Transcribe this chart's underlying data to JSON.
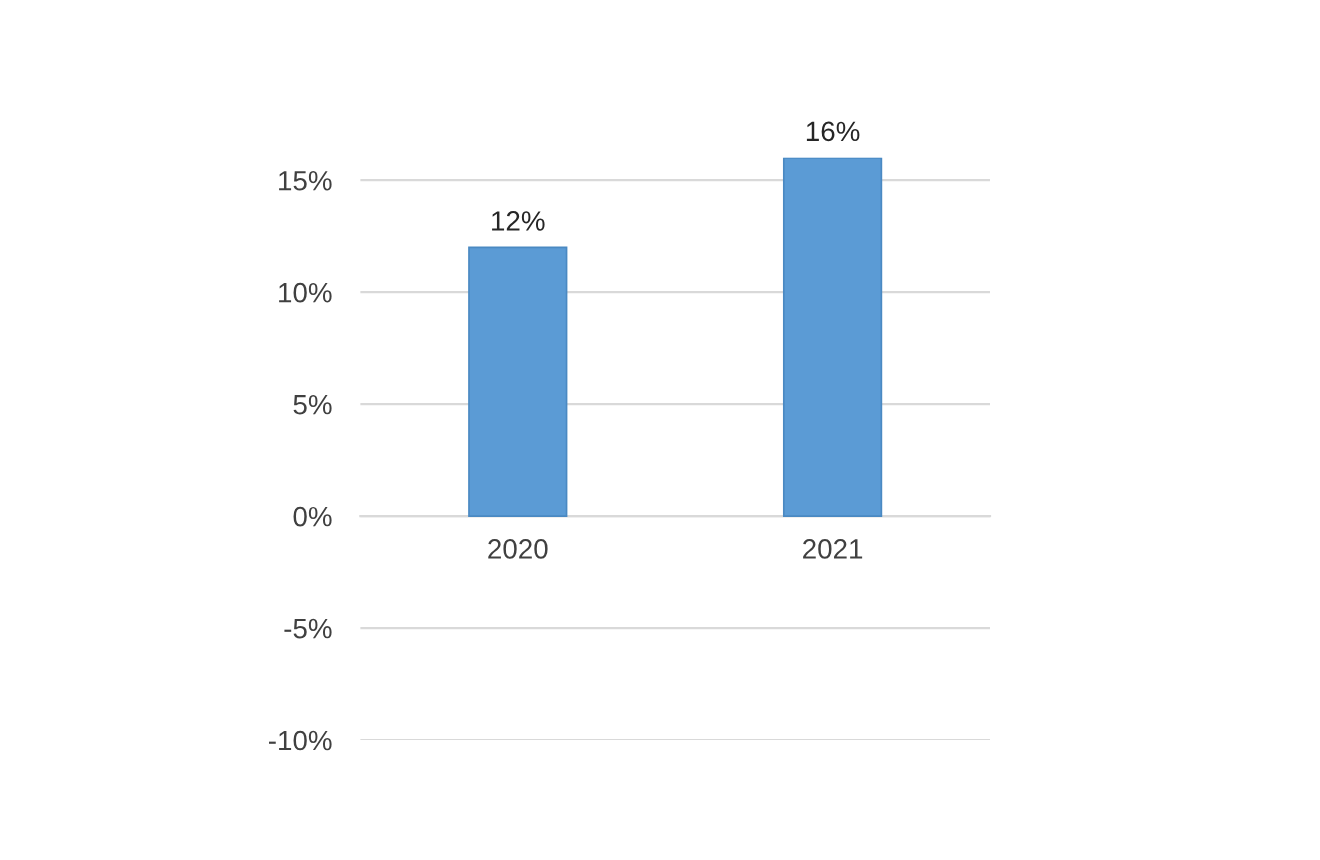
{
  "chart_data": {
    "type": "bar",
    "categories": [
      "2020",
      "2021"
    ],
    "values": [
      12,
      16
    ],
    "color": "#5b9bd5",
    "value_labels": [
      "12%",
      "16%"
    ],
    "ylim": [
      -10,
      16
    ],
    "yticks": [
      {
        "value": -10,
        "label": "-10%"
      },
      {
        "value": -5,
        "label": "-5%"
      },
      {
        "value": 0,
        "label": "0%"
      },
      {
        "value": 5,
        "label": "5%"
      },
      {
        "value": 10,
        "label": "10%"
      },
      {
        "value": 15,
        "label": "15%"
      }
    ],
    "grid": "y"
  }
}
